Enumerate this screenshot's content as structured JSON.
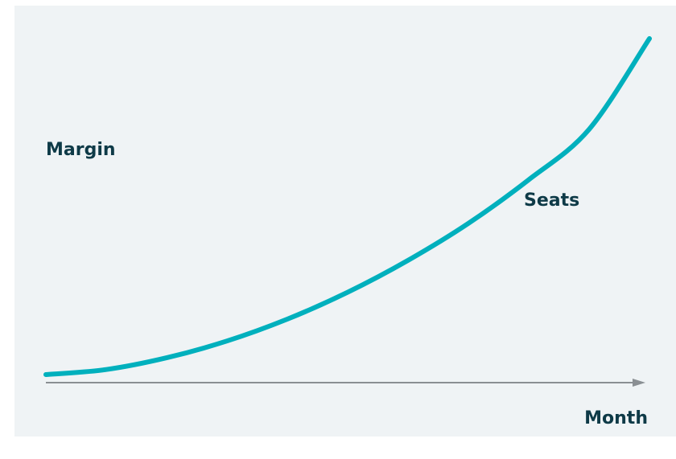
{
  "chart_data": {
    "type": "line",
    "title": "",
    "xlabel": "Month",
    "ylabel": "Margin",
    "series": [
      {
        "name": "Seats",
        "x": [
          0,
          0.1,
          0.2,
          0.3,
          0.4,
          0.5,
          0.6,
          0.7,
          0.8,
          0.9,
          1.0
        ],
        "values": [
          0,
          0.015,
          0.05,
          0.1,
          0.165,
          0.245,
          0.34,
          0.45,
          0.58,
          0.73,
          1.0
        ]
      }
    ],
    "xlim": [
      0,
      1
    ],
    "ylim": [
      0,
      1
    ],
    "grid": false,
    "x_ticks": "none",
    "y_ticks": "none",
    "colors": {
      "background": "#eff3f5",
      "line": "#00b0bd",
      "axis": "#8a8f93",
      "text": "#0e3a47"
    }
  }
}
